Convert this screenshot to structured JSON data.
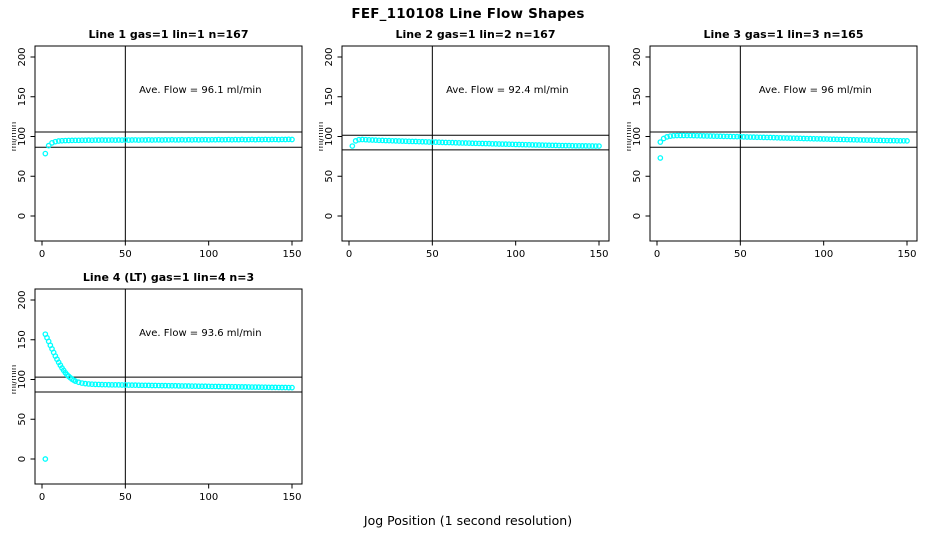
{
  "page": {
    "title": "FEF_110108  Line Flow Shapes",
    "xlabel": "Jog Position (1 second resolution)"
  },
  "colors": {
    "series": "#00FFFF",
    "axis": "#000000",
    "background": "#ffffff"
  },
  "chart_data": {
    "type": "scatter",
    "marker": "open-circle",
    "title": "FEF_110108  Line Flow Shapes",
    "xlabel": "Jog Position (1 second resolution)",
    "ylabel": "ml/min",
    "x_ticks": [
      0,
      50,
      100,
      150
    ],
    "y_ticks": [
      0,
      50,
      100,
      150,
      200
    ],
    "xlim": [
      -4,
      155
    ],
    "ylim": [
      -31,
      214
    ],
    "grid": false,
    "plots": [
      {
        "title": "Line 1 gas=1 lin=1 n=167",
        "annotation": "Ave. Flow =  96.1  ml/min",
        "ave_flow": 96.1,
        "n": 167,
        "vline": 50,
        "hlines": [
          105.7,
          86.5
        ],
        "outliers": [],
        "points": [
          [
            2,
            78.5
          ],
          [
            4,
            88.5
          ],
          [
            6,
            92
          ],
          [
            8,
            93.5
          ],
          [
            10,
            94.3
          ],
          [
            12,
            94.7
          ],
          [
            14,
            94.9
          ],
          [
            16,
            95
          ],
          [
            18,
            95.1
          ],
          [
            20,
            95.2
          ],
          [
            22,
            95.2
          ],
          [
            24,
            95.3
          ],
          [
            26,
            95.3
          ],
          [
            28,
            95.4
          ],
          [
            30,
            95.3
          ],
          [
            32,
            95.5
          ],
          [
            34,
            95.4
          ],
          [
            36,
            95.6
          ],
          [
            38,
            95.4
          ],
          [
            40,
            95.5
          ],
          [
            42,
            95.6
          ],
          [
            44,
            95.4
          ],
          [
            46,
            95.6
          ],
          [
            48,
            95.5
          ],
          [
            50,
            95.7
          ],
          [
            52,
            95.5
          ],
          [
            54,
            95.6
          ],
          [
            56,
            95.7
          ],
          [
            58,
            95.5
          ],
          [
            60,
            95.7
          ],
          [
            62,
            95.6
          ],
          [
            64,
            95.8
          ],
          [
            66,
            95.6
          ],
          [
            68,
            95.7
          ],
          [
            70,
            95.8
          ],
          [
            72,
            95.6
          ],
          [
            74,
            95.8
          ],
          [
            76,
            95.7
          ],
          [
            78,
            95.9
          ],
          [
            80,
            95.7
          ],
          [
            82,
            95.8
          ],
          [
            84,
            95.9
          ],
          [
            86,
            95.7
          ],
          [
            88,
            95.9
          ],
          [
            90,
            95.8
          ],
          [
            92,
            96
          ],
          [
            94,
            95.8
          ],
          [
            96,
            95.9
          ],
          [
            98,
            96
          ],
          [
            100,
            95.8
          ],
          [
            102,
            96
          ],
          [
            104,
            95.9
          ],
          [
            106,
            96.1
          ],
          [
            108,
            95.9
          ],
          [
            110,
            96
          ],
          [
            112,
            96.1
          ],
          [
            114,
            95.9
          ],
          [
            116,
            96.1
          ],
          [
            118,
            96
          ],
          [
            120,
            96.2
          ],
          [
            122,
            96
          ],
          [
            124,
            96.1
          ],
          [
            126,
            96.2
          ],
          [
            128,
            96
          ],
          [
            130,
            96.2
          ],
          [
            132,
            96.1
          ],
          [
            134,
            96.3
          ],
          [
            136,
            96.1
          ],
          [
            138,
            96.2
          ],
          [
            140,
            96.3
          ],
          [
            142,
            96.1
          ],
          [
            144,
            96.3
          ],
          [
            146,
            96.2
          ],
          [
            148,
            96.4
          ],
          [
            150,
            96.2
          ]
        ]
      },
      {
        "title": "Line 2 gas=1 lin=2 n=167",
        "annotation": "Ave. Flow =  92.4  ml/min",
        "ave_flow": 92.4,
        "n": 167,
        "vline": 50,
        "hlines": [
          101.6,
          83.2
        ],
        "outliers": [],
        "points": [
          [
            2,
            88
          ],
          [
            4,
            94.5
          ],
          [
            6,
            96
          ],
          [
            8,
            96.2
          ],
          [
            10,
            96
          ],
          [
            12,
            95.8
          ],
          [
            14,
            95.6
          ],
          [
            16,
            95.4
          ],
          [
            18,
            95.2
          ],
          [
            20,
            95.1
          ],
          [
            22,
            94.9
          ],
          [
            24,
            94.8
          ],
          [
            26,
            94.6
          ],
          [
            28,
            94.5
          ],
          [
            30,
            94.3
          ],
          [
            32,
            94.2
          ],
          [
            34,
            94.1
          ],
          [
            36,
            93.9
          ],
          [
            38,
            93.8
          ],
          [
            40,
            93.7
          ],
          [
            42,
            93.5
          ],
          [
            44,
            93.4
          ],
          [
            46,
            93.3
          ],
          [
            48,
            93.1
          ],
          [
            50,
            93
          ],
          [
            52,
            92.9
          ],
          [
            54,
            92.8
          ],
          [
            56,
            92.6
          ],
          [
            58,
            92.5
          ],
          [
            60,
            92.4
          ],
          [
            62,
            92.3
          ],
          [
            64,
            92.1
          ],
          [
            66,
            92
          ],
          [
            68,
            91.9
          ],
          [
            70,
            91.8
          ],
          [
            72,
            91.7
          ],
          [
            74,
            91.5
          ],
          [
            76,
            91.4
          ],
          [
            78,
            91.3
          ],
          [
            80,
            91.2
          ],
          [
            82,
            91.1
          ],
          [
            84,
            91
          ],
          [
            86,
            90.8
          ],
          [
            88,
            90.7
          ],
          [
            90,
            90.6
          ],
          [
            92,
            90.5
          ],
          [
            94,
            90.4
          ],
          [
            96,
            90.3
          ],
          [
            98,
            90.2
          ],
          [
            100,
            90
          ],
          [
            102,
            89.9
          ],
          [
            104,
            89.8
          ],
          [
            106,
            89.7
          ],
          [
            108,
            89.6
          ],
          [
            110,
            89.5
          ],
          [
            112,
            89.4
          ],
          [
            114,
            89.3
          ],
          [
            116,
            89.2
          ],
          [
            118,
            89.1
          ],
          [
            120,
            89
          ],
          [
            122,
            88.9
          ],
          [
            124,
            88.8
          ],
          [
            126,
            88.7
          ],
          [
            128,
            88.6
          ],
          [
            130,
            88.5
          ],
          [
            132,
            88.5
          ],
          [
            134,
            88.4
          ],
          [
            136,
            88.3
          ],
          [
            138,
            88.3
          ],
          [
            140,
            88.2
          ],
          [
            142,
            88.2
          ],
          [
            144,
            88.1
          ],
          [
            146,
            88.1
          ],
          [
            148,
            88
          ],
          [
            150,
            88
          ]
        ]
      },
      {
        "title": "Line 3 gas=1 lin=3 n=165",
        "annotation": "Ave. Flow =  96  ml/min",
        "ave_flow": 96,
        "n": 165,
        "vline": 50,
        "hlines": [
          105.6,
          86.4
        ],
        "outliers": [
          [
            2,
            73
          ]
        ],
        "points": [
          [
            2,
            93
          ],
          [
            4,
            97.5
          ],
          [
            6,
            99.5
          ],
          [
            8,
            100.5
          ],
          [
            10,
            101
          ],
          [
            12,
            101.2
          ],
          [
            14,
            101.3
          ],
          [
            16,
            101.3
          ],
          [
            18,
            101.2
          ],
          [
            20,
            101.2
          ],
          [
            22,
            101.1
          ],
          [
            24,
            101
          ],
          [
            26,
            100.9
          ],
          [
            28,
            100.8
          ],
          [
            30,
            100.7
          ],
          [
            32,
            100.6
          ],
          [
            34,
            100.5
          ],
          [
            36,
            100.4
          ],
          [
            38,
            100.3
          ],
          [
            40,
            100.2
          ],
          [
            42,
            100.1
          ],
          [
            44,
            100
          ],
          [
            46,
            99.9
          ],
          [
            48,
            99.8
          ],
          [
            50,
            99.7
          ],
          [
            52,
            99.5
          ],
          [
            54,
            99.4
          ],
          [
            56,
            99.3
          ],
          [
            58,
            99.2
          ],
          [
            60,
            99.1
          ],
          [
            62,
            99
          ],
          [
            64,
            98.9
          ],
          [
            66,
            98.8
          ],
          [
            68,
            98.7
          ],
          [
            70,
            98.6
          ],
          [
            72,
            98.4
          ],
          [
            74,
            98.3
          ],
          [
            76,
            98.2
          ],
          [
            78,
            98.1
          ],
          [
            80,
            98
          ],
          [
            82,
            97.9
          ],
          [
            84,
            97.8
          ],
          [
            86,
            97.7
          ],
          [
            88,
            97.5
          ],
          [
            90,
            97.4
          ],
          [
            92,
            97.3
          ],
          [
            94,
            97.2
          ],
          [
            96,
            97.1
          ],
          [
            98,
            97
          ],
          [
            100,
            96.9
          ],
          [
            102,
            96.8
          ],
          [
            104,
            96.6
          ],
          [
            106,
            96.5
          ],
          [
            108,
            96.4
          ],
          [
            110,
            96.3
          ],
          [
            112,
            96.2
          ],
          [
            114,
            96.1
          ],
          [
            116,
            96
          ],
          [
            118,
            95.9
          ],
          [
            120,
            95.8
          ],
          [
            122,
            95.7
          ],
          [
            124,
            95.6
          ],
          [
            126,
            95.5
          ],
          [
            128,
            95.4
          ],
          [
            130,
            95.3
          ],
          [
            132,
            95.2
          ],
          [
            134,
            95.1
          ],
          [
            136,
            95
          ],
          [
            138,
            94.9
          ],
          [
            140,
            94.8
          ],
          [
            142,
            94.8
          ],
          [
            144,
            94.7
          ],
          [
            146,
            94.6
          ],
          [
            148,
            94.6
          ],
          [
            150,
            94.5
          ]
        ]
      },
      {
        "title": "Line 4 (LT) gas=1 lin=4 n=3",
        "annotation": "Ave. Flow =  93.6  ml/min",
        "ave_flow": 93.6,
        "n": 3,
        "vline": 50,
        "hlines": [
          103.0,
          84.2
        ],
        "outliers": [
          [
            2,
            0
          ]
        ],
        "points": [
          [
            2,
            157
          ],
          [
            3,
            152.5
          ],
          [
            4,
            148
          ],
          [
            5,
            143
          ],
          [
            6,
            138.5
          ],
          [
            7,
            134
          ],
          [
            8,
            129.5
          ],
          [
            9,
            125.5
          ],
          [
            10,
            121.5
          ],
          [
            11,
            118
          ],
          [
            12,
            114.5
          ],
          [
            13,
            111.5
          ],
          [
            14,
            108.5
          ],
          [
            15,
            106
          ],
          [
            16,
            104
          ],
          [
            17,
            102.2
          ],
          [
            18,
            100.5
          ],
          [
            19,
            99.2
          ],
          [
            20,
            98
          ],
          [
            22,
            96.5
          ],
          [
            24,
            95.5
          ],
          [
            26,
            94.8
          ],
          [
            28,
            94.4
          ],
          [
            30,
            94.1
          ],
          [
            32,
            93.9
          ],
          [
            34,
            93.8
          ],
          [
            36,
            93.6
          ],
          [
            38,
            93.5
          ],
          [
            40,
            93.4
          ],
          [
            42,
            93.3
          ],
          [
            44,
            93.3
          ],
          [
            46,
            93.2
          ],
          [
            48,
            93.1
          ],
          [
            50,
            93.1
          ],
          [
            52,
            93
          ],
          [
            54,
            92.9
          ],
          [
            56,
            92.9
          ],
          [
            58,
            92.8
          ],
          [
            60,
            92.7
          ],
          [
            62,
            92.7
          ],
          [
            64,
            92.6
          ],
          [
            66,
            92.5
          ],
          [
            68,
            92.5
          ],
          [
            70,
            92.4
          ],
          [
            72,
            92.3
          ],
          [
            74,
            92.3
          ],
          [
            76,
            92.2
          ],
          [
            78,
            92.1
          ],
          [
            80,
            92.1
          ],
          [
            82,
            92
          ],
          [
            84,
            91.9
          ],
          [
            86,
            91.9
          ],
          [
            88,
            91.8
          ],
          [
            90,
            91.7
          ],
          [
            92,
            91.7
          ],
          [
            94,
            91.6
          ],
          [
            96,
            91.5
          ],
          [
            98,
            91.5
          ],
          [
            100,
            91.4
          ],
          [
            102,
            91.3
          ],
          [
            104,
            91.3
          ],
          [
            106,
            91.2
          ],
          [
            108,
            91.1
          ],
          [
            110,
            91.1
          ],
          [
            112,
            91
          ],
          [
            114,
            90.9
          ],
          [
            116,
            90.9
          ],
          [
            118,
            90.8
          ],
          [
            120,
            90.7
          ],
          [
            122,
            90.7
          ],
          [
            124,
            90.6
          ],
          [
            126,
            90.5
          ],
          [
            128,
            90.5
          ],
          [
            130,
            90.4
          ],
          [
            132,
            90.3
          ],
          [
            134,
            90.3
          ],
          [
            136,
            90.2
          ],
          [
            138,
            90.1
          ],
          [
            140,
            90.1
          ],
          [
            142,
            90
          ],
          [
            144,
            89.9
          ],
          [
            146,
            89.9
          ],
          [
            148,
            89.8
          ],
          [
            150,
            89.8
          ]
        ]
      }
    ]
  }
}
